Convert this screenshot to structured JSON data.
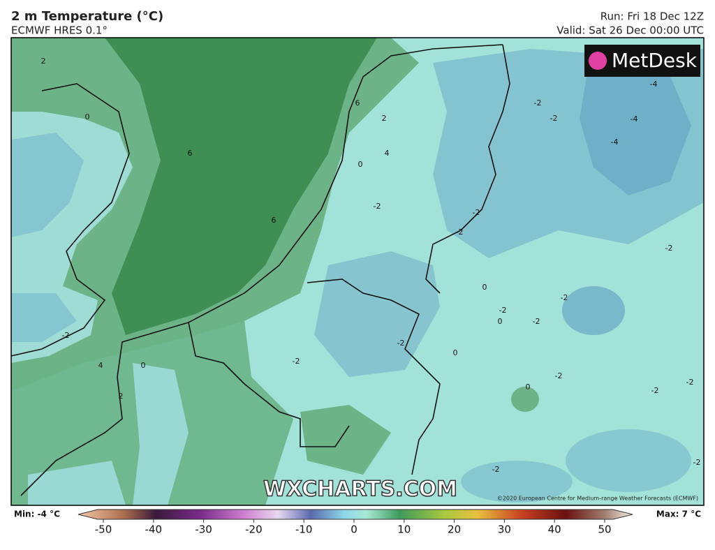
{
  "header": {
    "title": "2 m Temperature (°C)",
    "subtitle": "ECMWF HRES 0.1°",
    "run": "Run: Fri 18 Dec 12Z",
    "valid": "Valid: Sat 26 Dec 00:00 UTC"
  },
  "map": {
    "logo": "MetDesk",
    "watermark": "WXCHARTS.COM",
    "copyright": "©2020 European Centre for Medium-range Weather Forecasts (ECMWF)",
    "contour_labels": [
      2,
      0,
      6,
      6,
      2,
      4,
      0,
      -2,
      6,
      -2,
      -2,
      -2,
      -2,
      -4,
      -4,
      -4,
      -2,
      -2,
      -2,
      0,
      0,
      -2,
      -2,
      4,
      0,
      -2,
      -2,
      0,
      0,
      -2,
      -2,
      -2,
      2,
      -2,
      -2
    ]
  },
  "colorbar": {
    "min": "Min: -4 °C",
    "max": "Max: 7 °C",
    "ticks": [
      -50,
      -40,
      -30,
      -20,
      -10,
      0,
      10,
      20,
      30,
      40,
      50
    ]
  }
}
